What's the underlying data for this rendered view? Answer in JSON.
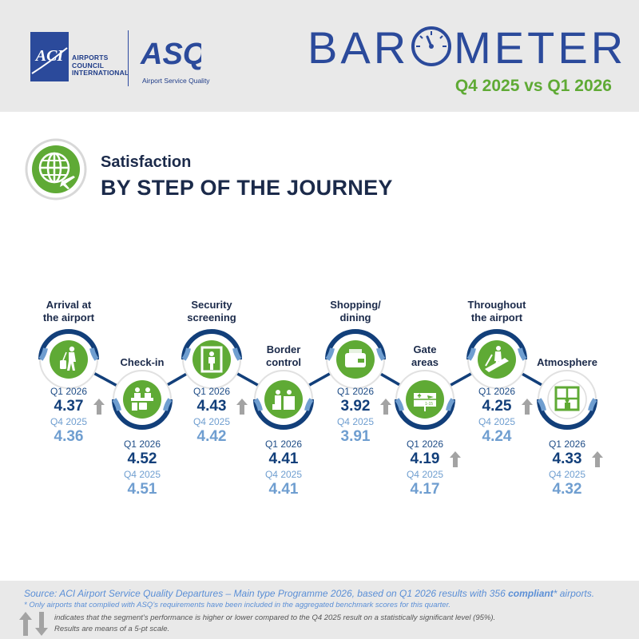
{
  "header": {
    "aci_logo_text": "ACI",
    "aci_name_lines": [
      "AIRPORTS",
      "COUNCIL",
      "INTERNATIONAL"
    ],
    "asq_logo_text": "ASQ",
    "asq_subtitle": "Airport Service Quality",
    "barometer_part1": "BAR",
    "barometer_part2": "METER",
    "period": "Q4 2025 vs Q1 2026"
  },
  "section": {
    "subtitle": "Satisfaction",
    "title": "BY STEP OF THE JOURNEY"
  },
  "colors": {
    "navy": "#123f7a",
    "light_blue": "#6f9ed0",
    "green": "#5faa35",
    "arrow_gray": "#a3a3a3",
    "header_bg": "#e9e9e9"
  },
  "steps": [
    {
      "label": "Arrival at the airport",
      "label_lines": [
        "Arrival at",
        "the airport"
      ],
      "icon": "arrival-icon",
      "current_period": "Q1 2026",
      "current": "4.37",
      "previous_period": "Q4 2025",
      "previous": "4.36",
      "trend": "up"
    },
    {
      "label": "Check-in",
      "label_lines": [
        "Check-in"
      ],
      "icon": "check-in-icon",
      "current_period": "Q1 2026",
      "current": "4.52",
      "previous_period": "Q4 2025",
      "previous": "4.51",
      "trend": "none"
    },
    {
      "label": "Security screening",
      "label_lines": [
        "Security",
        "screening"
      ],
      "icon": "security-icon",
      "current_period": "Q1 2026",
      "current": "4.43",
      "previous_period": "Q4 2025",
      "previous": "4.42",
      "trend": "up"
    },
    {
      "label": "Border control",
      "label_lines": [
        "Border",
        "control"
      ],
      "icon": "border-control-icon",
      "current_period": "Q1 2026",
      "current": "4.41",
      "previous_period": "Q4 2025",
      "previous": "4.41",
      "trend": "none"
    },
    {
      "label": "Shopping/ dining",
      "label_lines": [
        "Shopping/",
        "dining"
      ],
      "icon": "shopping-icon",
      "current_period": "Q1 2026",
      "current": "3.92",
      "previous_period": "Q4 2025",
      "previous": "3.91",
      "trend": "up"
    },
    {
      "label": "Gate areas",
      "label_lines": [
        "Gate",
        "areas"
      ],
      "icon": "gate-icon",
      "current_period": "Q1 2026",
      "current": "4.19",
      "previous_period": "Q4 2025",
      "previous": "4.17",
      "trend": "up"
    },
    {
      "label": "Throughout the airport",
      "label_lines": [
        "Throughout",
        "the airport"
      ],
      "icon": "walkway-icon",
      "current_period": "Q1 2026",
      "current": "4.25",
      "previous_period": "Q4 2025",
      "previous": "4.24",
      "trend": "up"
    },
    {
      "label": "Atmosphere",
      "label_lines": [
        "Atmosphere"
      ],
      "icon": "atmosphere-icon",
      "current_period": "Q1 2026",
      "current": "4.33",
      "previous_period": "Q4 2025",
      "previous": "4.32",
      "trend": "up"
    }
  ],
  "footer": {
    "source_prefix": "Source: ACI Airport Service Quality Departures – Main type Programme 2026, based on Q1 2026 results with 356 ",
    "source_bold": "compliant",
    "source_suffix": "* airports.",
    "note": "* Only airports that complied with ASQ’s requirements have been included in the aggregated benchmark scores for this quarter.",
    "legend_line1": "indicates that the segment’s performance is higher or lower compared to the Q4 2025 result on a statistically significant level (95%).",
    "legend_line2": "Results are means of a 5-pt scale."
  }
}
